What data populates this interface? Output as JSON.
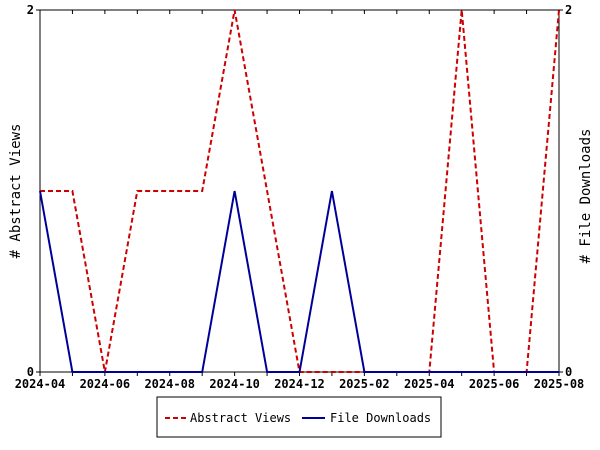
{
  "chart_data": {
    "type": "line",
    "x": [
      "2024-04",
      "2024-05",
      "2024-06",
      "2024-07",
      "2024-08",
      "2024-09",
      "2024-10",
      "2024-11",
      "2024-12",
      "2025-01",
      "2025-02",
      "2025-03",
      "2025-04",
      "2025-05",
      "2025-06",
      "2025-07",
      "2025-08"
    ],
    "x_tick_labels": [
      "2024-04",
      "2024-06",
      "2024-08",
      "2024-10",
      "2024-12",
      "2025-02",
      "2025-04",
      "2025-06",
      "2025-08"
    ],
    "series": [
      {
        "name": "Abstract Views",
        "axis": "left",
        "color": "#cc0000",
        "dash": "dashed",
        "values": [
          1,
          1,
          0,
          1,
          1,
          1,
          2,
          1,
          0,
          0,
          0,
          0,
          0,
          2,
          0,
          0,
          2
        ]
      },
      {
        "name": "File Downloads",
        "axis": "right",
        "color": "#000099",
        "dash": "solid",
        "values": [
          1,
          0,
          0,
          0,
          0,
          0,
          1,
          0,
          0,
          1,
          0,
          0,
          0,
          0,
          0,
          0,
          0
        ]
      }
    ],
    "ylabel_left": "# Abstract Views",
    "ylabel_right": "# File Downloads",
    "ylim_left": [
      0,
      2
    ],
    "ylim_right": [
      0,
      2
    ],
    "y_ticks_left": [
      "0",
      "2"
    ],
    "y_ticks_right": [
      "0",
      "2"
    ],
    "legend_position": "bottom-center",
    "grid": false
  }
}
